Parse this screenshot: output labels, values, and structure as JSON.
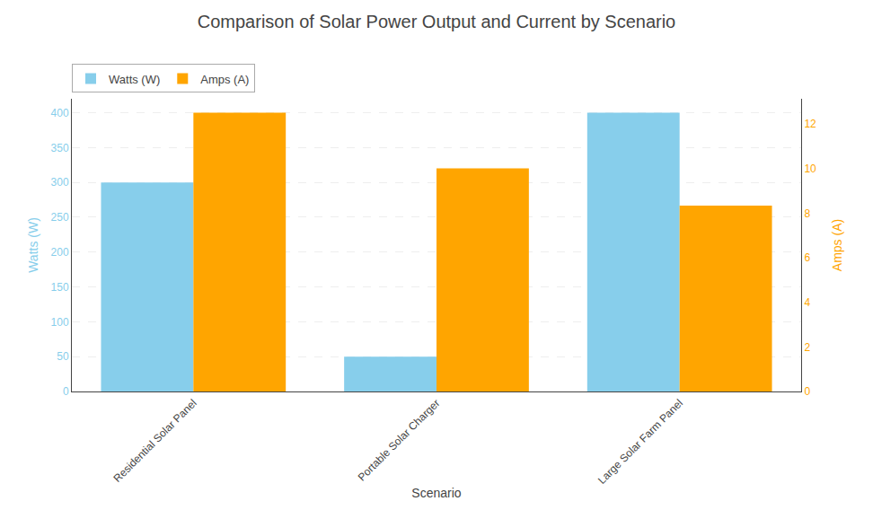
{
  "chart_data": {
    "type": "bar",
    "title": "Comparison of Solar Power Output and Current by Scenario",
    "xlabel": "Scenario",
    "ylabel": "Watts (W)",
    "y2label": "Amps (A)",
    "categories": [
      "Residential Solar Panel",
      "Portable Solar Charger",
      "Large Solar Farm Panel"
    ],
    "series": [
      {
        "name": "Watts (W)",
        "color": "#87CEEB",
        "values": [
          300,
          50,
          400
        ]
      },
      {
        "name": "Amps (A)",
        "color": "#FFA500",
        "values": [
          12.5,
          10.0,
          8.33
        ],
        "axis": "y2"
      }
    ],
    "ylim": [
      0,
      420
    ],
    "yticks": [
      0,
      50,
      100,
      150,
      200,
      250,
      300,
      350,
      400
    ],
    "y2lim": [
      0,
      13.125
    ],
    "y2ticks": [
      0,
      2,
      4,
      6,
      8,
      10,
      12
    ],
    "grid": true,
    "legend": "upper left"
  }
}
